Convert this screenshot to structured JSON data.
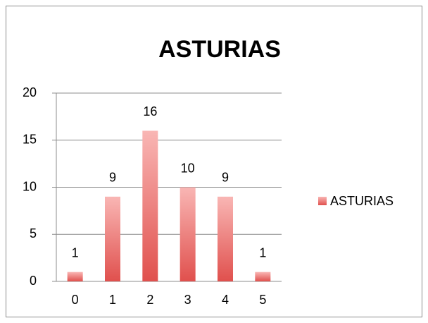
{
  "chart_data": {
    "type": "bar",
    "title": "ASTURIAS",
    "categories": [
      "0",
      "1",
      "2",
      "3",
      "4",
      "5"
    ],
    "series": [
      {
        "name": "ASTURIAS",
        "color": "#e0504d",
        "values": [
          1,
          9,
          16,
          10,
          9,
          1
        ]
      }
    ],
    "ylim": [
      0,
      20
    ],
    "yticks": [
      0,
      5,
      10,
      15,
      20
    ],
    "grid": true,
    "legend": "right"
  }
}
